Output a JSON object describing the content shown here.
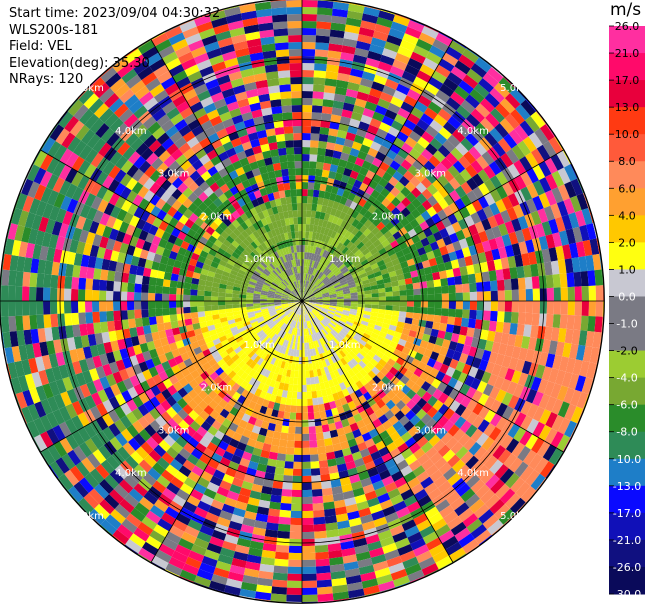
{
  "header": {
    "start_time": "Start time: 2023/09/04 04:30:32",
    "instrument": "WLS200s-181",
    "field": "Field: VEL",
    "elevation": "Elevation(deg): 35.30",
    "nrays": "NRays: 120"
  },
  "colorbar": {
    "unit": "m/s",
    "labels": [
      "26.0",
      "21.0",
      "17.0",
      "13.0",
      "10.0",
      "8.0",
      "6.0",
      "4.0",
      "2.0",
      "1.0",
      "0.0",
      "-1.0",
      "-2.0",
      "-4.0",
      "-6.0",
      "-8.0",
      "-10.0",
      "-13.0",
      "-17.0",
      "-21.0",
      "-26.0",
      "-30.0"
    ],
    "colors": [
      "#ff2fa0",
      "#ff0a6a",
      "#e8003c",
      "#ff3a12",
      "#ff5a3a",
      "#ff8a5a",
      "#ffa030",
      "#ffc800",
      "#ffff10",
      "#c8c8d2",
      "#7a7a84",
      "#7a7a84",
      "#9ccc32",
      "#78a832",
      "#2a8c2a",
      "#2e8b57",
      "#1e7ec8",
      "#0a0aff",
      "#1010b8",
      "#101080",
      "#0a0a5a"
    ]
  },
  "chart_data": {
    "type": "heatmap",
    "projection": "polar PPI",
    "field": "VEL",
    "unit": "m/s",
    "nrays": 120,
    "range_rings_km": [
      1.0,
      2.0,
      3.0,
      4.0,
      5.0
    ],
    "ring_labels": [
      "1.0km",
      "2.0km",
      "3.0km",
      "4.0km",
      "5.0km"
    ],
    "max_range_km": 5.4,
    "spoke_step_deg": 30,
    "value_range": [
      -30.0,
      26.0
    ]
  }
}
